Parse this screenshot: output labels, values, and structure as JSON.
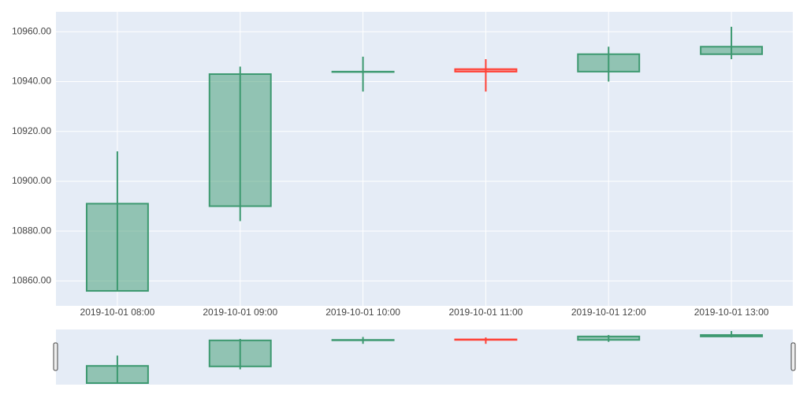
{
  "chart_data": {
    "type": "candlestick",
    "x": [
      "2019-10-01 08:00",
      "2019-10-01 09:00",
      "2019-10-01 10:00",
      "2019-10-01 11:00",
      "2019-10-01 12:00",
      "2019-10-01 13:00"
    ],
    "open": [
      10856,
      10890,
      10944,
      10945,
      10944,
      10951
    ],
    "high": [
      10912,
      10946,
      10950,
      10949,
      10954,
      10962
    ],
    "low": [
      10856,
      10884,
      10936,
      10936,
      10940,
      10949
    ],
    "close": [
      10891,
      10943,
      10944,
      10944,
      10951,
      10954
    ],
    "increasing_color": "#3D9970",
    "decreasing_color": "#FF4136",
    "ylim": [
      10850,
      10968
    ],
    "yticks": [
      {
        "value": 10860,
        "label": "10860.00"
      },
      {
        "value": 10880,
        "label": "10880.00"
      },
      {
        "value": 10900,
        "label": "10900.00"
      },
      {
        "value": 10920,
        "label": "10920.00"
      },
      {
        "value": 10940,
        "label": "10940.00"
      },
      {
        "value": 10960,
        "label": "10960.00"
      }
    ],
    "grid": true,
    "rangeslider": true
  }
}
